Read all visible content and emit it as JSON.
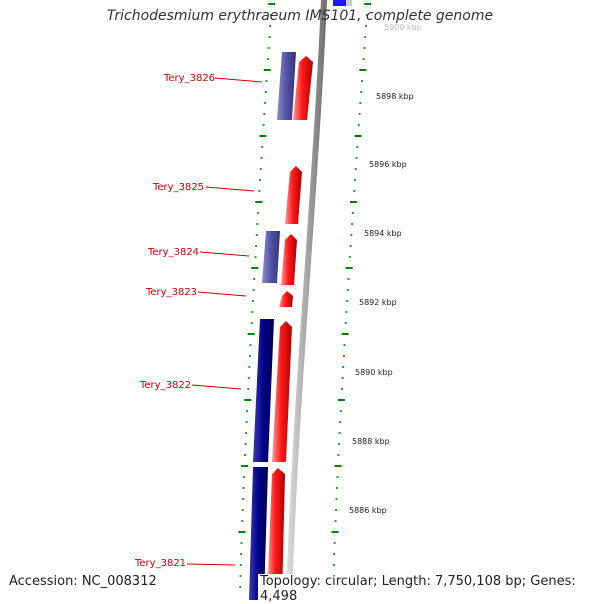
{
  "title": "Trichodesmium erythraeum IMS101, complete genome",
  "accession": "Accession: NC_008312",
  "topology": "Topology: circular; Length: 7,750,108 bp; Genes: 4,498",
  "colors": {
    "forward_cds": "#ff0000",
    "reverse_cds": "#000080",
    "reverse_cds_light": "#4a4aa0",
    "label": "#cc0000",
    "ticks": "#008000",
    "backbone": "#9a9a9a"
  },
  "scale": {
    "partial_label": "5900 kbp",
    "labels": [
      "5898 kbp",
      "5896 kbp",
      "5894 kbp",
      "5892 kbp",
      "5890 kbp",
      "5888 kbp",
      "5886 kbp"
    ]
  },
  "genes": [
    {
      "label": "Tery_3826"
    },
    {
      "label": "Tery_3825"
    },
    {
      "label": "Tery_3824"
    },
    {
      "label": "Tery_3823"
    },
    {
      "label": "Tery_3822"
    },
    {
      "label": "Tery_3821"
    }
  ]
}
